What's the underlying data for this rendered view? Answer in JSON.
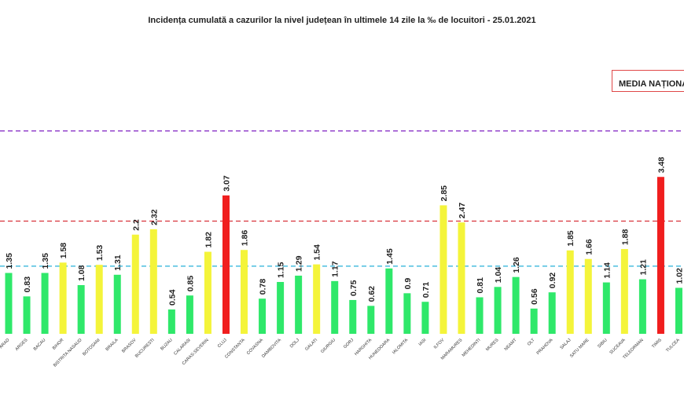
{
  "title": "Incidența cumulată a cazurilor la nivel județean în ultimele 14 zile la ‰ de locuitori - 25.01.2021",
  "legend_label": "MEDIA NAȚIONALĂ",
  "colors": {
    "green": "#2fe86a",
    "yellow": "#f4f43a",
    "red": "#f01e1e",
    "purple_line": "#8a35c8",
    "red_line": "#d8333a",
    "blue_line": "#27b0d8"
  },
  "chart_data": {
    "type": "bar",
    "title": "Incidența cumulată a cazurilor la nivel județean în ultimele 14 zile la ‰ de locuitori - 25.01.2021",
    "xlabel": "",
    "ylabel": "",
    "ylim": [
      0,
      4.5
    ],
    "grid": false,
    "legend": "top-right",
    "categories": [
      "ARAD",
      "ARGES",
      "BACAU",
      "BIHOR",
      "BISTRITA NASAUD",
      "BOTOSANI",
      "BRAILA",
      "BRASOV",
      "BUCURESTI",
      "BUZAU",
      "CALARASI",
      "CARAS-SEVERIN",
      "CLUJ",
      "CONSTANTA",
      "COVASNA",
      "DAMBOVITA",
      "DOLJ",
      "GALATI",
      "GIURGIU",
      "GORJ",
      "HARGHITA",
      "HUNEDOARA",
      "IALOMITA",
      "IASI",
      "ILFOV",
      "MARAMURES",
      "MEHEDINTI",
      "MURES",
      "NEAMT",
      "OLT",
      "PRAHOVA",
      "SALAJ",
      "SATU MARE",
      "SIBIU",
      "SUCEAVA",
      "TELEORMAN",
      "TIMIS",
      "TULCEA"
    ],
    "values": [
      1.35,
      0.83,
      1.35,
      1.58,
      1.08,
      1.53,
      1.31,
      2.2,
      2.32,
      0.54,
      0.85,
      1.82,
      3.07,
      1.86,
      0.78,
      1.15,
      1.29,
      1.54,
      1.17,
      0.75,
      0.62,
      1.45,
      0.9,
      0.71,
      2.85,
      2.47,
      0.81,
      1.04,
      1.26,
      0.56,
      0.92,
      1.85,
      1.66,
      1.14,
      1.88,
      1.21,
      3.48,
      1.02
    ],
    "value_labels": [
      "1.35",
      "0.83",
      "1.35",
      "1.58",
      "1.08",
      "1.53",
      "1.31",
      "2.2",
      "2.32",
      "0.54",
      "0.85",
      "1.82",
      "3.07",
      "1.86",
      "0.78",
      "1.15",
      "1.29",
      "1.54",
      "1.17",
      "0.75",
      "0.62",
      "1.45",
      "0.9",
      "0.71",
      "2.85",
      "2.47",
      "0.81",
      "1.04",
      "1.26",
      "0.56",
      "0.92",
      "1.85",
      "1.66",
      "1.14",
      "1.88",
      "1.21",
      "3.48",
      "1.02"
    ],
    "bar_colors": [
      "green",
      "green",
      "green",
      "yellow",
      "green",
      "yellow",
      "green",
      "yellow",
      "yellow",
      "green",
      "green",
      "yellow",
      "red",
      "yellow",
      "green",
      "green",
      "green",
      "yellow",
      "green",
      "green",
      "green",
      "green",
      "green",
      "green",
      "yellow",
      "yellow",
      "green",
      "green",
      "green",
      "green",
      "green",
      "yellow",
      "yellow",
      "green",
      "yellow",
      "green",
      "red",
      "green"
    ],
    "thresholds": [
      {
        "value": 4.5,
        "color": "purple_line"
      },
      {
        "value": 2.5,
        "color": "red_line"
      },
      {
        "value": 1.5,
        "color": "blue_line"
      }
    ]
  }
}
